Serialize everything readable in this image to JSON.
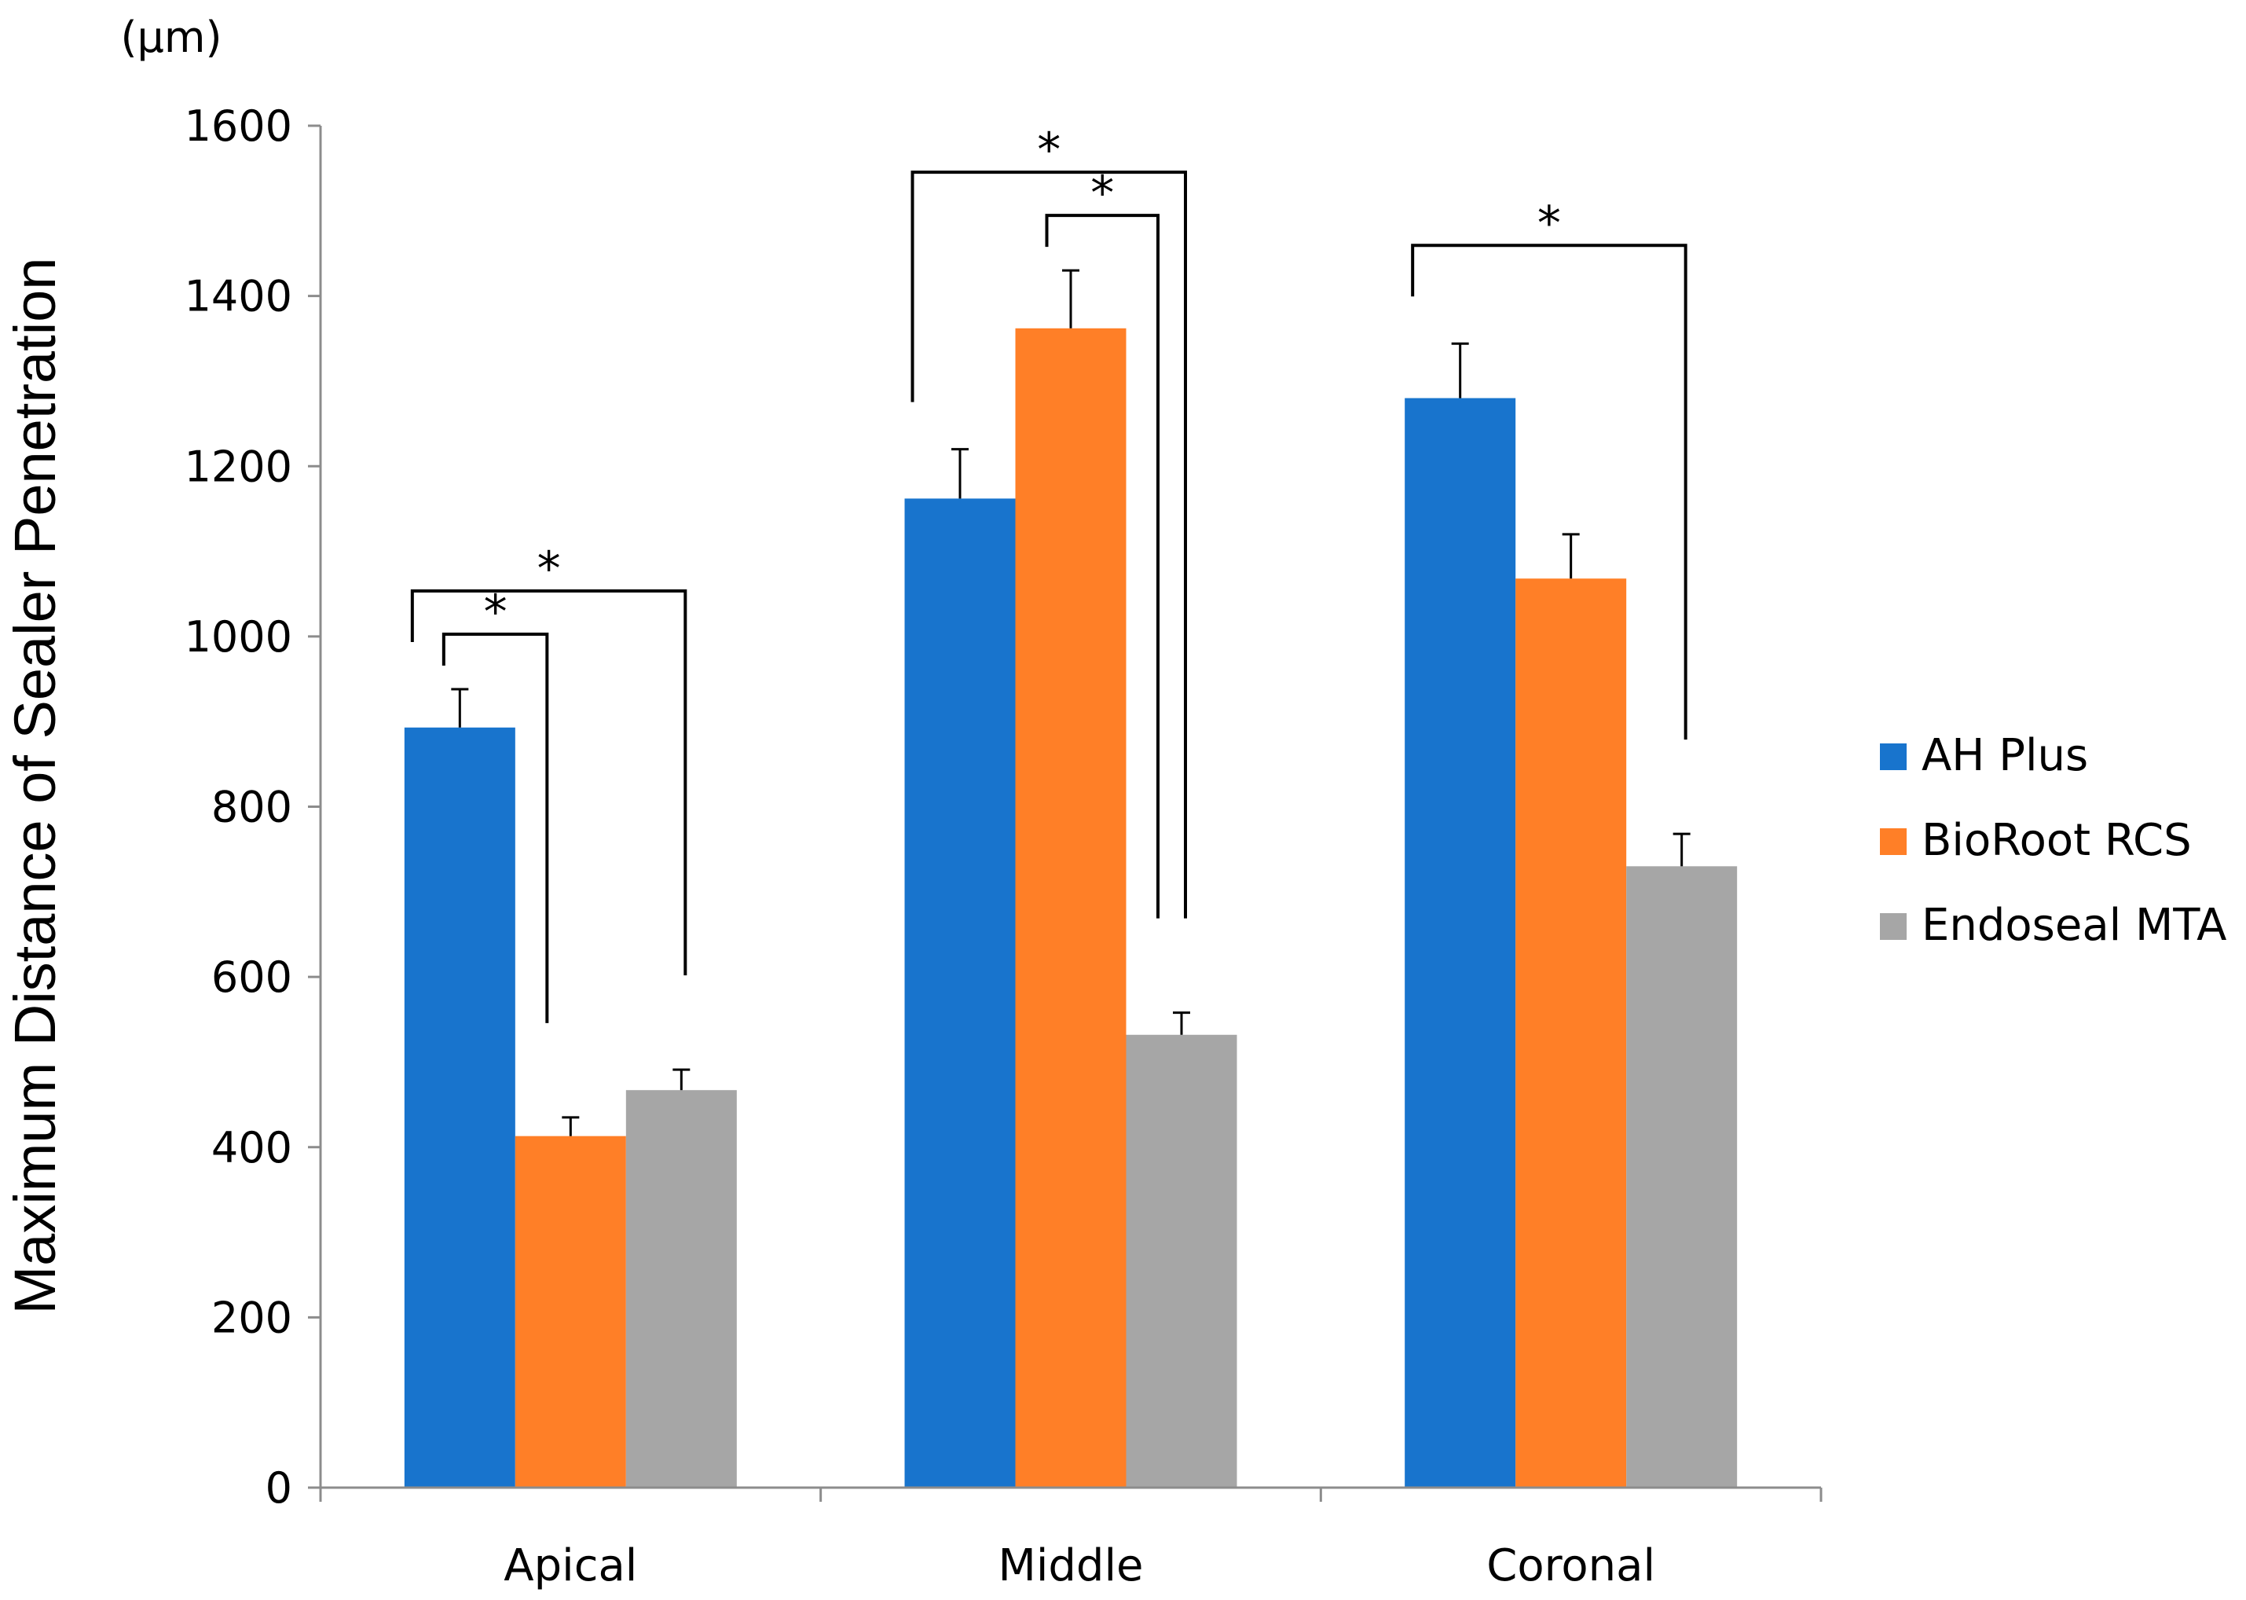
{
  "chart_data": {
    "type": "bar",
    "unit_label": "(µm)",
    "ylabel": "Maximum Distance of Sealer Penetration",
    "xlabel": "",
    "ylim": [
      0,
      1600
    ],
    "y_ticks": [
      "0",
      "200",
      "400",
      "600",
      "800",
      "1000",
      "1200",
      "1400",
      "1600"
    ],
    "categories": [
      "Apical",
      "Middle",
      "Coronal"
    ],
    "series": [
      {
        "name": "AH Plus",
        "color": "#1874CD",
        "values": [
          893,
          1162,
          1280
        ],
        "errors": [
          45,
          58,
          64
        ]
      },
      {
        "name": "BioRoot RCS",
        "color": "#FF7F27",
        "values": [
          413,
          1362,
          1068
        ],
        "errors": [
          22,
          68,
          52
        ]
      },
      {
        "name": "Endoseal MTA",
        "color": "#A6A6A6",
        "values": [
          467,
          532,
          730
        ],
        "errors": [
          24,
          26,
          38
        ]
      }
    ],
    "legend_position": "right",
    "significance": [
      {
        "category": 0,
        "from_series": 0,
        "to_series": 2,
        "label": "*"
      },
      {
        "category": 0,
        "from_series": 0,
        "to_series": 1,
        "label": "*"
      },
      {
        "category": 1,
        "from_series": 0,
        "to_series": 2,
        "label": "*"
      },
      {
        "category": 1,
        "from_series": 1,
        "to_series": 2,
        "label": "*"
      },
      {
        "category": 2,
        "from_series": 0,
        "to_series": 2,
        "label": "*"
      }
    ]
  }
}
